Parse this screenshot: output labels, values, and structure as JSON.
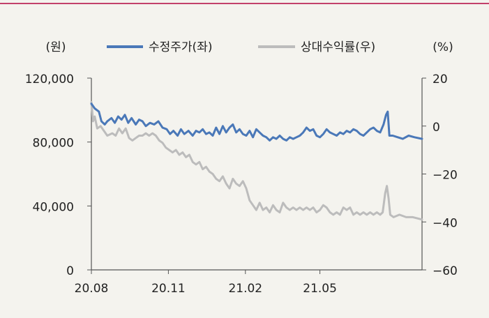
{
  "chart_data": {
    "type": "line",
    "accent_color": "#c2406a",
    "left_unit": "(원)",
    "right_unit": "(%)",
    "x_ticks": [
      "20.08",
      "20.11",
      "21.02",
      "21.05"
    ],
    "x_range": [
      "2020-08-01",
      "2021-08-31"
    ],
    "y_left": {
      "range": [
        0,
        120000
      ],
      "ticks": [
        "0",
        "40,000",
        "80,000",
        "120,000"
      ],
      "tick_values": [
        0,
        40000,
        80000,
        120000
      ]
    },
    "y_right": {
      "range": [
        -60,
        20
      ],
      "ticks": [
        "−60",
        "−40",
        "−20",
        "0",
        "20"
      ],
      "tick_values": [
        -60,
        -40,
        -20,
        0,
        20
      ]
    },
    "series": [
      {
        "name": "수정주가(좌)",
        "axis": "left",
        "color": "#4a78b8",
        "points": [
          [
            "2020-08-01",
            104000
          ],
          [
            "2020-08-05",
            101000
          ],
          [
            "2020-08-10",
            99000
          ],
          [
            "2020-08-13",
            93000
          ],
          [
            "2020-08-17",
            91000
          ],
          [
            "2020-08-20",
            93000
          ],
          [
            "2020-08-25",
            95000
          ],
          [
            "2020-08-29",
            92000
          ],
          [
            "2020-09-02",
            96000
          ],
          [
            "2020-09-06",
            94000
          ],
          [
            "2020-09-10",
            97000
          ],
          [
            "2020-09-14",
            92000
          ],
          [
            "2020-09-18",
            95000
          ],
          [
            "2020-09-23",
            91000
          ],
          [
            "2020-09-27",
            94000
          ],
          [
            "2020-10-01",
            93000
          ],
          [
            "2020-10-05",
            90000
          ],
          [
            "2020-10-10",
            92000
          ],
          [
            "2020-10-15",
            91000
          ],
          [
            "2020-10-20",
            93000
          ],
          [
            "2020-10-25",
            89000
          ],
          [
            "2020-10-30",
            88000
          ],
          [
            "2020-11-03",
            85000
          ],
          [
            "2020-11-07",
            87000
          ],
          [
            "2020-11-12",
            84000
          ],
          [
            "2020-11-16",
            88000
          ],
          [
            "2020-11-20",
            85000
          ],
          [
            "2020-11-25",
            87000
          ],
          [
            "2020-11-30",
            84000
          ],
          [
            "2020-12-04",
            87000
          ],
          [
            "2020-12-08",
            86000
          ],
          [
            "2020-12-12",
            88000
          ],
          [
            "2020-12-16",
            85000
          ],
          [
            "2020-12-20",
            86000
          ],
          [
            "2020-12-24",
            84000
          ],
          [
            "2020-12-28",
            89000
          ],
          [
            "2021-01-01",
            85000
          ],
          [
            "2021-01-05",
            90000
          ],
          [
            "2021-01-09",
            86000
          ],
          [
            "2021-01-13",
            89000
          ],
          [
            "2021-01-17",
            91000
          ],
          [
            "2021-01-21",
            86000
          ],
          [
            "2021-01-25",
            88000
          ],
          [
            "2021-01-29",
            85000
          ],
          [
            "2021-02-02",
            84000
          ],
          [
            "2021-02-06",
            87000
          ],
          [
            "2021-02-10",
            83000
          ],
          [
            "2021-02-14",
            88000
          ],
          [
            "2021-02-18",
            86000
          ],
          [
            "2021-02-22",
            84000
          ],
          [
            "2021-02-26",
            83000
          ],
          [
            "2021-03-02",
            81000
          ],
          [
            "2021-03-06",
            83000
          ],
          [
            "2021-03-10",
            82000
          ],
          [
            "2021-03-14",
            84000
          ],
          [
            "2021-03-18",
            82000
          ],
          [
            "2021-03-22",
            81000
          ],
          [
            "2021-03-26",
            83000
          ],
          [
            "2021-03-30",
            82000
          ],
          [
            "2021-04-03",
            83000
          ],
          [
            "2021-04-07",
            84000
          ],
          [
            "2021-04-11",
            86000
          ],
          [
            "2021-04-15",
            89000
          ],
          [
            "2021-04-19",
            87000
          ],
          [
            "2021-04-23",
            88000
          ],
          [
            "2021-04-27",
            84000
          ],
          [
            "2021-05-01",
            83000
          ],
          [
            "2021-05-05",
            85000
          ],
          [
            "2021-05-09",
            88000
          ],
          [
            "2021-05-13",
            86000
          ],
          [
            "2021-05-17",
            85000
          ],
          [
            "2021-05-21",
            84000
          ],
          [
            "2021-05-25",
            86000
          ],
          [
            "2021-05-29",
            85000
          ],
          [
            "2021-06-02",
            87000
          ],
          [
            "2021-06-06",
            86000
          ],
          [
            "2021-06-10",
            88000
          ],
          [
            "2021-06-14",
            87000
          ],
          [
            "2021-06-18",
            85000
          ],
          [
            "2021-06-22",
            84000
          ],
          [
            "2021-06-26",
            86000
          ],
          [
            "2021-06-30",
            88000
          ],
          [
            "2021-07-04",
            89000
          ],
          [
            "2021-07-08",
            87000
          ],
          [
            "2021-07-12",
            86000
          ],
          [
            "2021-07-16",
            91000
          ],
          [
            "2021-07-19",
            97000
          ],
          [
            "2021-07-21",
            99000
          ],
          [
            "2021-07-23",
            84000
          ],
          [
            "2021-07-27",
            84000
          ],
          [
            "2021-08-02",
            83000
          ],
          [
            "2021-08-08",
            82000
          ],
          [
            "2021-08-15",
            84000
          ],
          [
            "2021-08-22",
            83000
          ],
          [
            "2021-08-31",
            82000
          ]
        ]
      },
      {
        "name": "상대수익률(우)",
        "axis": "right",
        "color": "#bcbcbc",
        "points": [
          [
            "2020-08-01",
            10
          ],
          [
            "2020-08-03",
            2
          ],
          [
            "2020-08-05",
            4
          ],
          [
            "2020-08-08",
            -1
          ],
          [
            "2020-08-12",
            0
          ],
          [
            "2020-08-16",
            -2
          ],
          [
            "2020-08-20",
            -4
          ],
          [
            "2020-08-26",
            -3
          ],
          [
            "2020-08-30",
            -4
          ],
          [
            "2020-09-03",
            -1
          ],
          [
            "2020-09-07",
            -3
          ],
          [
            "2020-09-11",
            -1
          ],
          [
            "2020-09-15",
            -5
          ],
          [
            "2020-09-19",
            -6
          ],
          [
            "2020-09-23",
            -5
          ],
          [
            "2020-09-27",
            -4
          ],
          [
            "2020-10-01",
            -4
          ],
          [
            "2020-10-05",
            -3
          ],
          [
            "2020-10-09",
            -4
          ],
          [
            "2020-10-13",
            -3
          ],
          [
            "2020-10-17",
            -4
          ],
          [
            "2020-10-21",
            -6
          ],
          [
            "2020-10-25",
            -7
          ],
          [
            "2020-10-29",
            -9
          ],
          [
            "2020-11-02",
            -10
          ],
          [
            "2020-11-06",
            -11
          ],
          [
            "2020-11-10",
            -10
          ],
          [
            "2020-11-14",
            -12
          ],
          [
            "2020-11-18",
            -11
          ],
          [
            "2020-11-22",
            -13
          ],
          [
            "2020-11-26",
            -12
          ],
          [
            "2020-11-30",
            -15
          ],
          [
            "2020-12-04",
            -16
          ],
          [
            "2020-12-08",
            -15
          ],
          [
            "2020-12-12",
            -18
          ],
          [
            "2020-12-16",
            -17
          ],
          [
            "2020-12-20",
            -19
          ],
          [
            "2020-12-24",
            -20
          ],
          [
            "2020-12-28",
            -22
          ],
          [
            "2021-01-01",
            -23
          ],
          [
            "2021-01-05",
            -21
          ],
          [
            "2021-01-09",
            -24
          ],
          [
            "2021-01-13",
            -26
          ],
          [
            "2021-01-17",
            -22
          ],
          [
            "2021-01-21",
            -24
          ],
          [
            "2021-01-25",
            -25
          ],
          [
            "2021-01-29",
            -23
          ],
          [
            "2021-02-02",
            -26
          ],
          [
            "2021-02-06",
            -31
          ],
          [
            "2021-02-10",
            -33
          ],
          [
            "2021-02-14",
            -35
          ],
          [
            "2021-02-18",
            -32
          ],
          [
            "2021-02-22",
            -35
          ],
          [
            "2021-02-26",
            -34
          ],
          [
            "2021-03-02",
            -36
          ],
          [
            "2021-03-06",
            -33
          ],
          [
            "2021-03-10",
            -35
          ],
          [
            "2021-03-14",
            -36
          ],
          [
            "2021-03-18",
            -32
          ],
          [
            "2021-03-22",
            -34
          ],
          [
            "2021-03-26",
            -35
          ],
          [
            "2021-03-30",
            -34
          ],
          [
            "2021-04-03",
            -35
          ],
          [
            "2021-04-07",
            -34
          ],
          [
            "2021-04-11",
            -35
          ],
          [
            "2021-04-15",
            -34
          ],
          [
            "2021-04-19",
            -35
          ],
          [
            "2021-04-23",
            -34
          ],
          [
            "2021-04-27",
            -36
          ],
          [
            "2021-05-01",
            -35
          ],
          [
            "2021-05-05",
            -33
          ],
          [
            "2021-05-09",
            -34
          ],
          [
            "2021-05-13",
            -36
          ],
          [
            "2021-05-17",
            -37
          ],
          [
            "2021-05-21",
            -36
          ],
          [
            "2021-05-25",
            -37
          ],
          [
            "2021-05-29",
            -34
          ],
          [
            "2021-06-02",
            -35
          ],
          [
            "2021-06-06",
            -34
          ],
          [
            "2021-06-10",
            -37
          ],
          [
            "2021-06-14",
            -36
          ],
          [
            "2021-06-18",
            -37
          ],
          [
            "2021-06-22",
            -36
          ],
          [
            "2021-06-26",
            -37
          ],
          [
            "2021-06-30",
            -36
          ],
          [
            "2021-07-04",
            -37
          ],
          [
            "2021-07-08",
            -36
          ],
          [
            "2021-07-12",
            -37
          ],
          [
            "2021-07-15",
            -36
          ],
          [
            "2021-07-18",
            -28
          ],
          [
            "2021-07-20",
            -25
          ],
          [
            "2021-07-22",
            -30
          ],
          [
            "2021-07-24",
            -37
          ],
          [
            "2021-07-28",
            -38
          ],
          [
            "2021-08-04",
            -37
          ],
          [
            "2021-08-12",
            -38
          ],
          [
            "2021-08-20",
            -38
          ],
          [
            "2021-08-31",
            -39
          ]
        ]
      }
    ]
  }
}
